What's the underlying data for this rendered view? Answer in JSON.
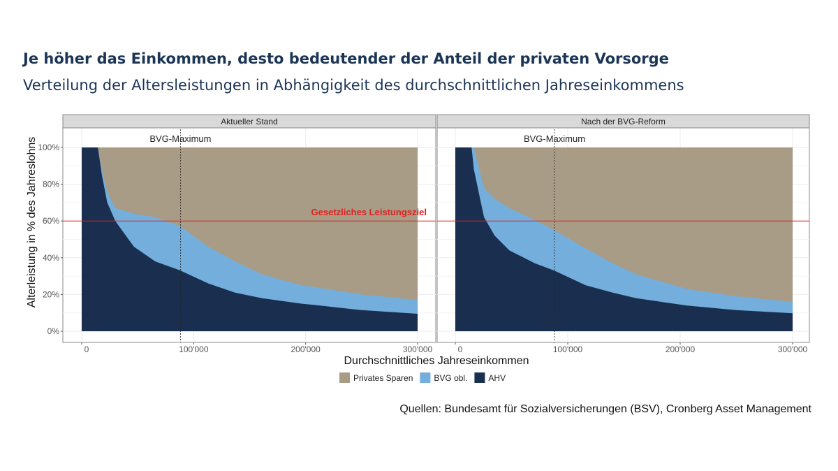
{
  "title": "Je höher das Einkommen, desto bedeutender der Anteil der privaten Vorsorge",
  "subtitle": "Verteilung der Altersleistungen in Abhängigkeit des durchschnittlichen Jahreseinkommens",
  "source": "Quellen: Bundesamt für Sozialversicherungen (BSV), Cronberg Asset Management",
  "colors": {
    "privates": "#a99c86",
    "bvg": "#74aedc",
    "ahv": "#1a2f50",
    "target": "#e02020"
  },
  "chart_data": {
    "type": "area",
    "xlabel": "Durchschnittliches Jahreseinkommen",
    "ylabel": "Alterleistung in % des Jahreslohns",
    "xlim": [
      0,
      300000
    ],
    "ylim": [
      0,
      100
    ],
    "x_ticks": [
      {
        "v": 0,
        "label": "0"
      },
      {
        "v": 100000,
        "label": "100'000"
      },
      {
        "v": 200000,
        "label": "200'000"
      },
      {
        "v": 300000,
        "label": "300'000"
      }
    ],
    "y_ticks": [
      {
        "v": 0,
        "label": "0%"
      },
      {
        "v": 20,
        "label": "20%"
      },
      {
        "v": 40,
        "label": "40%"
      },
      {
        "v": 60,
        "label": "60%"
      },
      {
        "v": 80,
        "label": "80%"
      },
      {
        "v": 100,
        "label": "100%"
      }
    ],
    "legend": [
      {
        "name": "Privates Sparen",
        "key": "privates"
      },
      {
        "name": "BVG obl.",
        "key": "bvg"
      },
      {
        "name": "AHV",
        "key": "ahv"
      }
    ],
    "legend_position": "bottom",
    "hline": {
      "value": 60,
      "label": "Gesetzliches Leistungsziel"
    },
    "vline": {
      "value": 88200,
      "label": "BVG-Maximum"
    },
    "panels": [
      {
        "title": "Aktueller Stand",
        "x": [
          0,
          10000,
          14500,
          18000,
          22800,
          30000,
          46600,
          65700,
          88300,
          113000,
          137000,
          161000,
          196500,
          208000,
          250000,
          300000
        ],
        "ahv": [
          100,
          100,
          100,
          85,
          70,
          60,
          46,
          38,
          33,
          26,
          21,
          18,
          15,
          14.3,
          11.5,
          9.5
        ],
        "ahv_bvg": [
          100,
          100,
          100,
          88,
          76,
          67,
          64,
          62,
          57,
          46,
          38,
          31,
          25,
          24,
          20,
          17
        ]
      },
      {
        "title": "Nach der BVG-Reform",
        "x": [
          0,
          10000,
          14500,
          16500,
          25500,
          35000,
          48000,
          70700,
          88100,
          116000,
          140000,
          161000,
          206000,
          250000,
          300000
        ],
        "ahv": [
          100,
          100,
          100,
          88,
          62,
          52,
          44,
          37,
          33,
          25,
          21,
          18,
          14,
          11.5,
          9.8
        ],
        "ahv_bvg": [
          100,
          100,
          100,
          100,
          78,
          72,
          67,
          60.5,
          55,
          45,
          37,
          31,
          23,
          19,
          16
        ]
      }
    ]
  }
}
